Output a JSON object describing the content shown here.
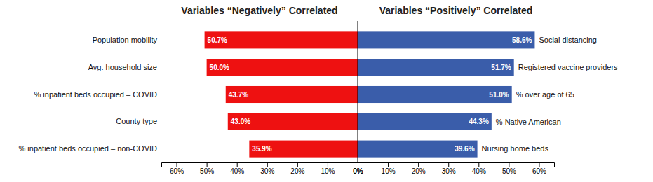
{
  "chart_data": [
    {
      "type": "bar",
      "orientation": "horizontal",
      "title": "Variables “Negatively” Correlated",
      "categories": [
        "Population mobility",
        "Avg. household size",
        "% inpatient beds occupied – COVID",
        "County type",
        "% inpatient beds occupied – non-COVID"
      ],
      "values": [
        50.7,
        50.0,
        43.7,
        43.0,
        35.9
      ],
      "value_labels": [
        "50.7%",
        "50.0%",
        "43.7%",
        "43.0%",
        "35.9%"
      ],
      "data_labels": true,
      "color": "#EE1111",
      "xlim": [
        65,
        0
      ],
      "xticks": [
        {
          "value": 60,
          "label": "60%"
        },
        {
          "value": 50,
          "label": "50%"
        },
        {
          "value": 40,
          "label": "40%"
        },
        {
          "value": 30,
          "label": "30%"
        },
        {
          "value": 20,
          "label": "20%"
        },
        {
          "value": 10,
          "label": "10%"
        },
        {
          "value": 0,
          "label": "0%"
        }
      ]
    },
    {
      "type": "bar",
      "orientation": "horizontal",
      "title": "Variables “Positively” Correlated",
      "categories": [
        "Social distancing",
        "Registered vaccine providers",
        "% over age of 65",
        "% Native American",
        "Nursing home beds"
      ],
      "values": [
        58.6,
        51.7,
        51.0,
        44.3,
        39.6
      ],
      "value_labels": [
        "58.6%",
        "51.7%",
        "51.0%",
        "44.3%",
        "39.6%"
      ],
      "data_labels": true,
      "color": "#3A5DAA",
      "xlim": [
        0,
        65
      ],
      "xticks": [
        {
          "value": 60,
          "label": "60%"
        },
        {
          "value": 50,
          "label": "50%"
        },
        {
          "value": 40,
          "label": "40%"
        },
        {
          "value": 30,
          "label": "30%"
        },
        {
          "value": 20,
          "label": "20%"
        },
        {
          "value": 10,
          "label": "10%"
        },
        {
          "value": 0,
          "label": "0%"
        }
      ]
    }
  ]
}
